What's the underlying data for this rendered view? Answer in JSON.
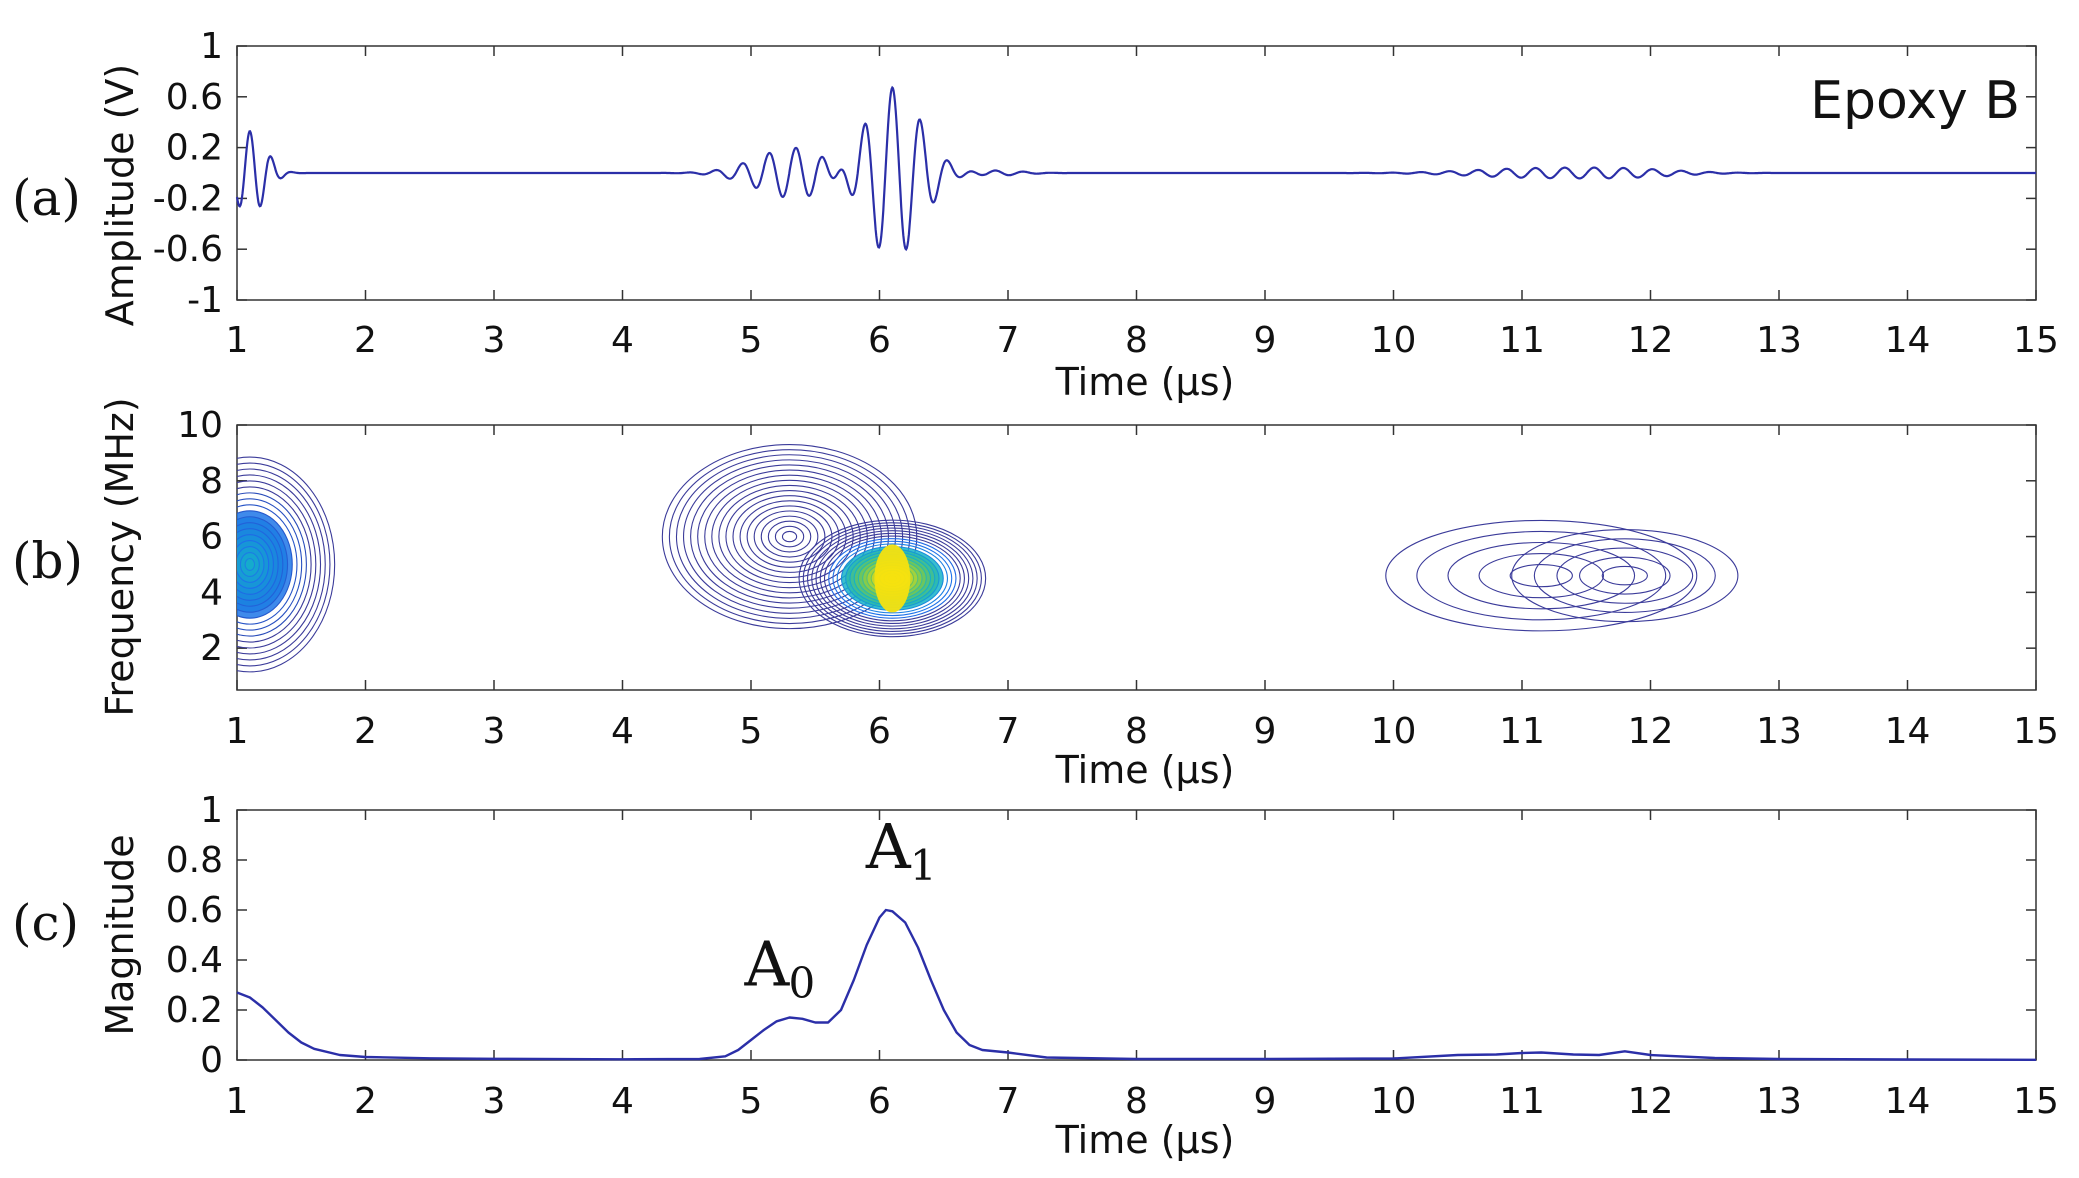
{
  "panel_labels": [
    "(a)",
    "(b)",
    "(c)"
  ],
  "annotation": "Epoxy B",
  "peak_labels": [
    {
      "base": "A",
      "sub": "0",
      "x": 5.3,
      "y": 0.17
    },
    {
      "base": "A",
      "sub": "1",
      "x": 6.05,
      "y": 0.6
    }
  ],
  "colors": {
    "line": "#2b2fa8",
    "contour": "#3b3b9a",
    "hot": "#f5e10f"
  },
  "chart_data": [
    {
      "type": "line",
      "xlabel": "Time (μs)",
      "ylabel": "Amplitude (V)",
      "xlim": [
        1,
        15
      ],
      "ylim": [
        -1,
        1
      ],
      "xticks": [
        1,
        2,
        3,
        4,
        5,
        6,
        7,
        8,
        9,
        10,
        11,
        12,
        13,
        14,
        15
      ],
      "yticks": [
        1,
        0.6,
        0.2,
        -0.2,
        -0.6,
        -1
      ],
      "ytick_labels": [
        "1",
        "0.6",
        "0.2",
        "-0.2",
        "-0.6",
        "-1"
      ],
      "signal_packets": [
        {
          "center": 1.1,
          "amp": 0.33,
          "freq": 6.0,
          "sigma": 0.12
        },
        {
          "center": 5.35,
          "amp": 0.2,
          "freq": 4.8,
          "sigma": 0.3
        },
        {
          "center": 6.1,
          "amp": 0.68,
          "freq": 4.6,
          "sigma": 0.22
        },
        {
          "center": 6.9,
          "amp": 0.02,
          "freq": 4.5,
          "sigma": 0.2
        },
        {
          "center": 11.1,
          "amp": 0.035,
          "freq": 4.5,
          "sigma": 0.5
        },
        {
          "center": 11.8,
          "amp": 0.03,
          "freq": 4.5,
          "sigma": 0.4
        }
      ]
    },
    {
      "type": "heatmap",
      "xlabel": "Time (μs)",
      "ylabel": "Frequency (MHz)",
      "xlim": [
        1,
        15
      ],
      "ylim": [
        0.5,
        10
      ],
      "xticks": [
        1,
        2,
        3,
        4,
        5,
        6,
        7,
        8,
        9,
        10,
        11,
        12,
        13,
        14,
        15
      ],
      "yticks": [
        10,
        8,
        6,
        4,
        2
      ],
      "ytick_labels": [
        "10",
        "8",
        "6",
        "4",
        "2"
      ],
      "blobs": [
        {
          "t": 1.1,
          "f": 5.0,
          "st": 0.3,
          "sf": 3.5,
          "w": 0.45
        },
        {
          "t": 5.3,
          "f": 6.0,
          "st": 0.45,
          "sf": 3.0,
          "w": 0.25
        },
        {
          "t": 6.1,
          "f": 4.5,
          "st": 0.33,
          "sf": 1.9,
          "w": 1.0
        },
        {
          "t": 11.15,
          "f": 4.6,
          "st": 0.55,
          "sf": 1.8,
          "w": 0.06
        },
        {
          "t": 11.8,
          "f": 4.6,
          "st": 0.4,
          "sf": 1.5,
          "w": 0.05
        }
      ]
    },
    {
      "type": "line",
      "xlabel": "Time (μs)",
      "ylabel": "Magnitude",
      "xlim": [
        1,
        15
      ],
      "ylim": [
        0,
        1
      ],
      "xticks": [
        1,
        2,
        3,
        4,
        5,
        6,
        7,
        8,
        9,
        10,
        11,
        12,
        13,
        14,
        15
      ],
      "yticks": [
        1,
        0.8,
        0.6,
        0.4,
        0.2,
        0
      ],
      "ytick_labels": [
        "1",
        "0.8",
        "0.6",
        "0.4",
        "0.2",
        "0"
      ],
      "x": [
        1.0,
        1.1,
        1.2,
        1.3,
        1.4,
        1.5,
        1.6,
        1.8,
        2.0,
        2.5,
        3.0,
        4.0,
        4.6,
        4.8,
        4.9,
        5.0,
        5.1,
        5.2,
        5.3,
        5.4,
        5.5,
        5.6,
        5.7,
        5.8,
        5.9,
        6.0,
        6.05,
        6.1,
        6.2,
        6.3,
        6.4,
        6.5,
        6.6,
        6.7,
        6.8,
        7.0,
        7.3,
        8.0,
        9.0,
        10.0,
        10.5,
        10.8,
        11.0,
        11.15,
        11.4,
        11.6,
        11.8,
        12.0,
        12.5,
        13.0,
        14.0,
        15.0
      ],
      "y": [
        0.27,
        0.25,
        0.21,
        0.16,
        0.11,
        0.07,
        0.045,
        0.02,
        0.012,
        0.007,
        0.005,
        0.003,
        0.004,
        0.015,
        0.04,
        0.08,
        0.12,
        0.155,
        0.17,
        0.165,
        0.15,
        0.15,
        0.2,
        0.32,
        0.46,
        0.57,
        0.6,
        0.595,
        0.55,
        0.45,
        0.32,
        0.2,
        0.11,
        0.06,
        0.04,
        0.03,
        0.01,
        0.004,
        0.004,
        0.006,
        0.02,
        0.022,
        0.028,
        0.03,
        0.022,
        0.02,
        0.035,
        0.02,
        0.008,
        0.004,
        0.002,
        0.001
      ]
    }
  ]
}
